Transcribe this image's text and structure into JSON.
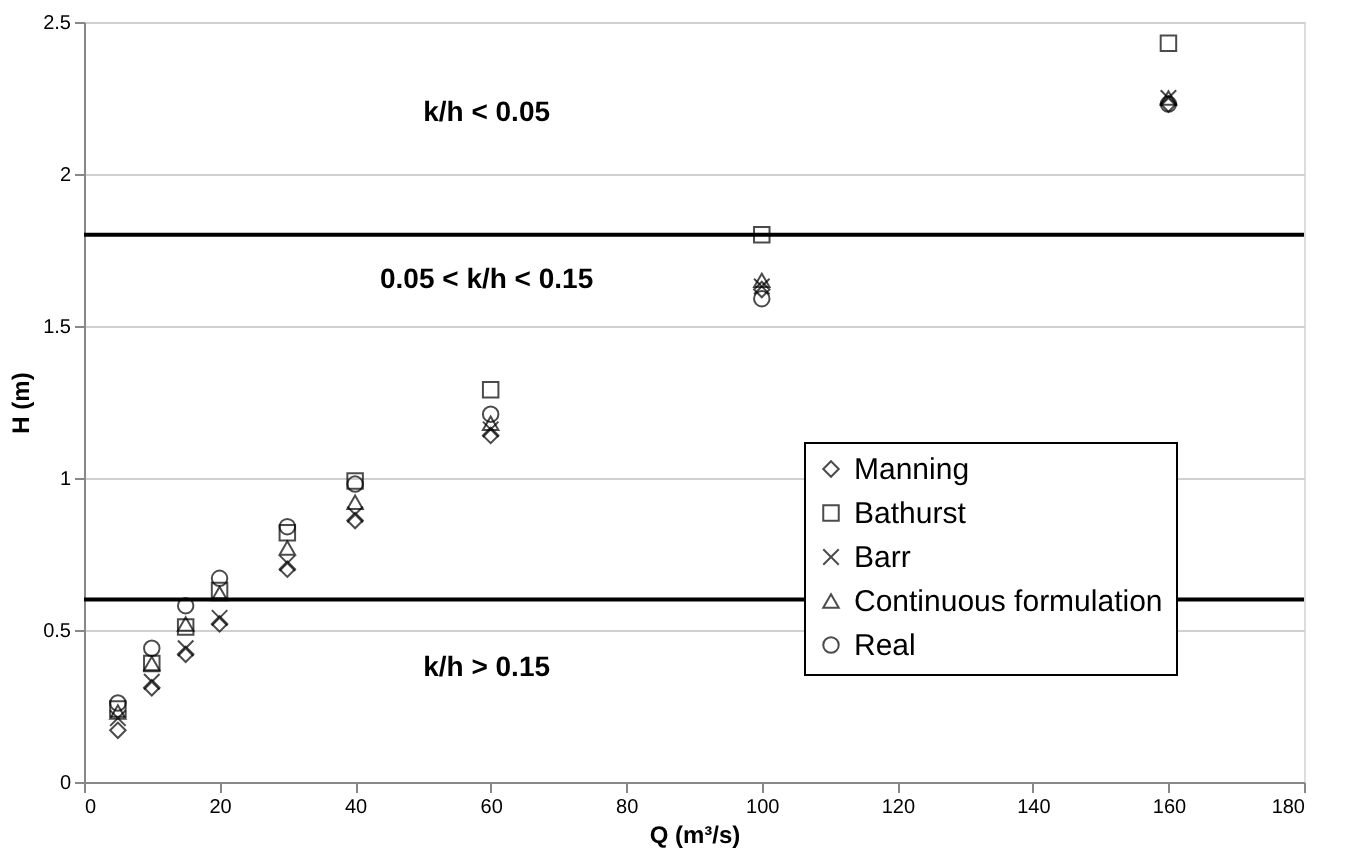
{
  "chart_data": {
    "type": "scatter",
    "xlabel": "Q (m³/s)",
    "ylabel": "H  (m)",
    "x": [
      5,
      10,
      15,
      20,
      30,
      40,
      60,
      100,
      160
    ],
    "series": [
      {
        "name": "Manning",
        "color": "#000000",
        "marker": "diamond",
        "values": [
          0.17,
          0.31,
          0.42,
          0.52,
          0.7,
          0.86,
          1.14,
          1.62,
          2.23
        ]
      },
      {
        "name": "Bathurst",
        "color": "#000000",
        "marker": "square",
        "values": [
          0.24,
          0.39,
          0.51,
          0.63,
          0.82,
          0.99,
          1.29,
          1.8,
          2.43
        ]
      },
      {
        "name": "Barr",
        "color": "#000000",
        "marker": "cross",
        "values": [
          0.21,
          0.33,
          0.44,
          0.54,
          0.72,
          0.88,
          1.16,
          1.63,
          2.25
        ]
      },
      {
        "name": "Continuous formulation",
        "color": "#000000",
        "marker": "triangle",
        "values": [
          0.23,
          0.39,
          0.52,
          0.62,
          0.77,
          0.92,
          1.18,
          1.65,
          2.25
        ]
      },
      {
        "name": "Real",
        "color": "#000000",
        "marker": "circle",
        "values": [
          0.26,
          0.44,
          0.58,
          0.67,
          0.84,
          0.98,
          1.21,
          1.59,
          2.23
        ]
      }
    ],
    "xlim": [
      0,
      180
    ],
    "xticks": [
      0,
      20,
      40,
      60,
      80,
      100,
      120,
      140,
      160,
      180
    ],
    "ylim": [
      0,
      2.5
    ],
    "yticks": [
      0,
      0.5,
      1,
      1.5,
      2,
      2.5
    ],
    "ref_lines": [
      {
        "axis": "y",
        "value": 1.8,
        "color": "#000000"
      },
      {
        "axis": "y",
        "value": 0.6,
        "color": "#000000"
      }
    ],
    "annotations": [
      "k/h < 0.05",
      "0.05 < k/h < 0.15",
      "k/h > 0.15"
    ],
    "grid": "y",
    "legend": "right"
  }
}
